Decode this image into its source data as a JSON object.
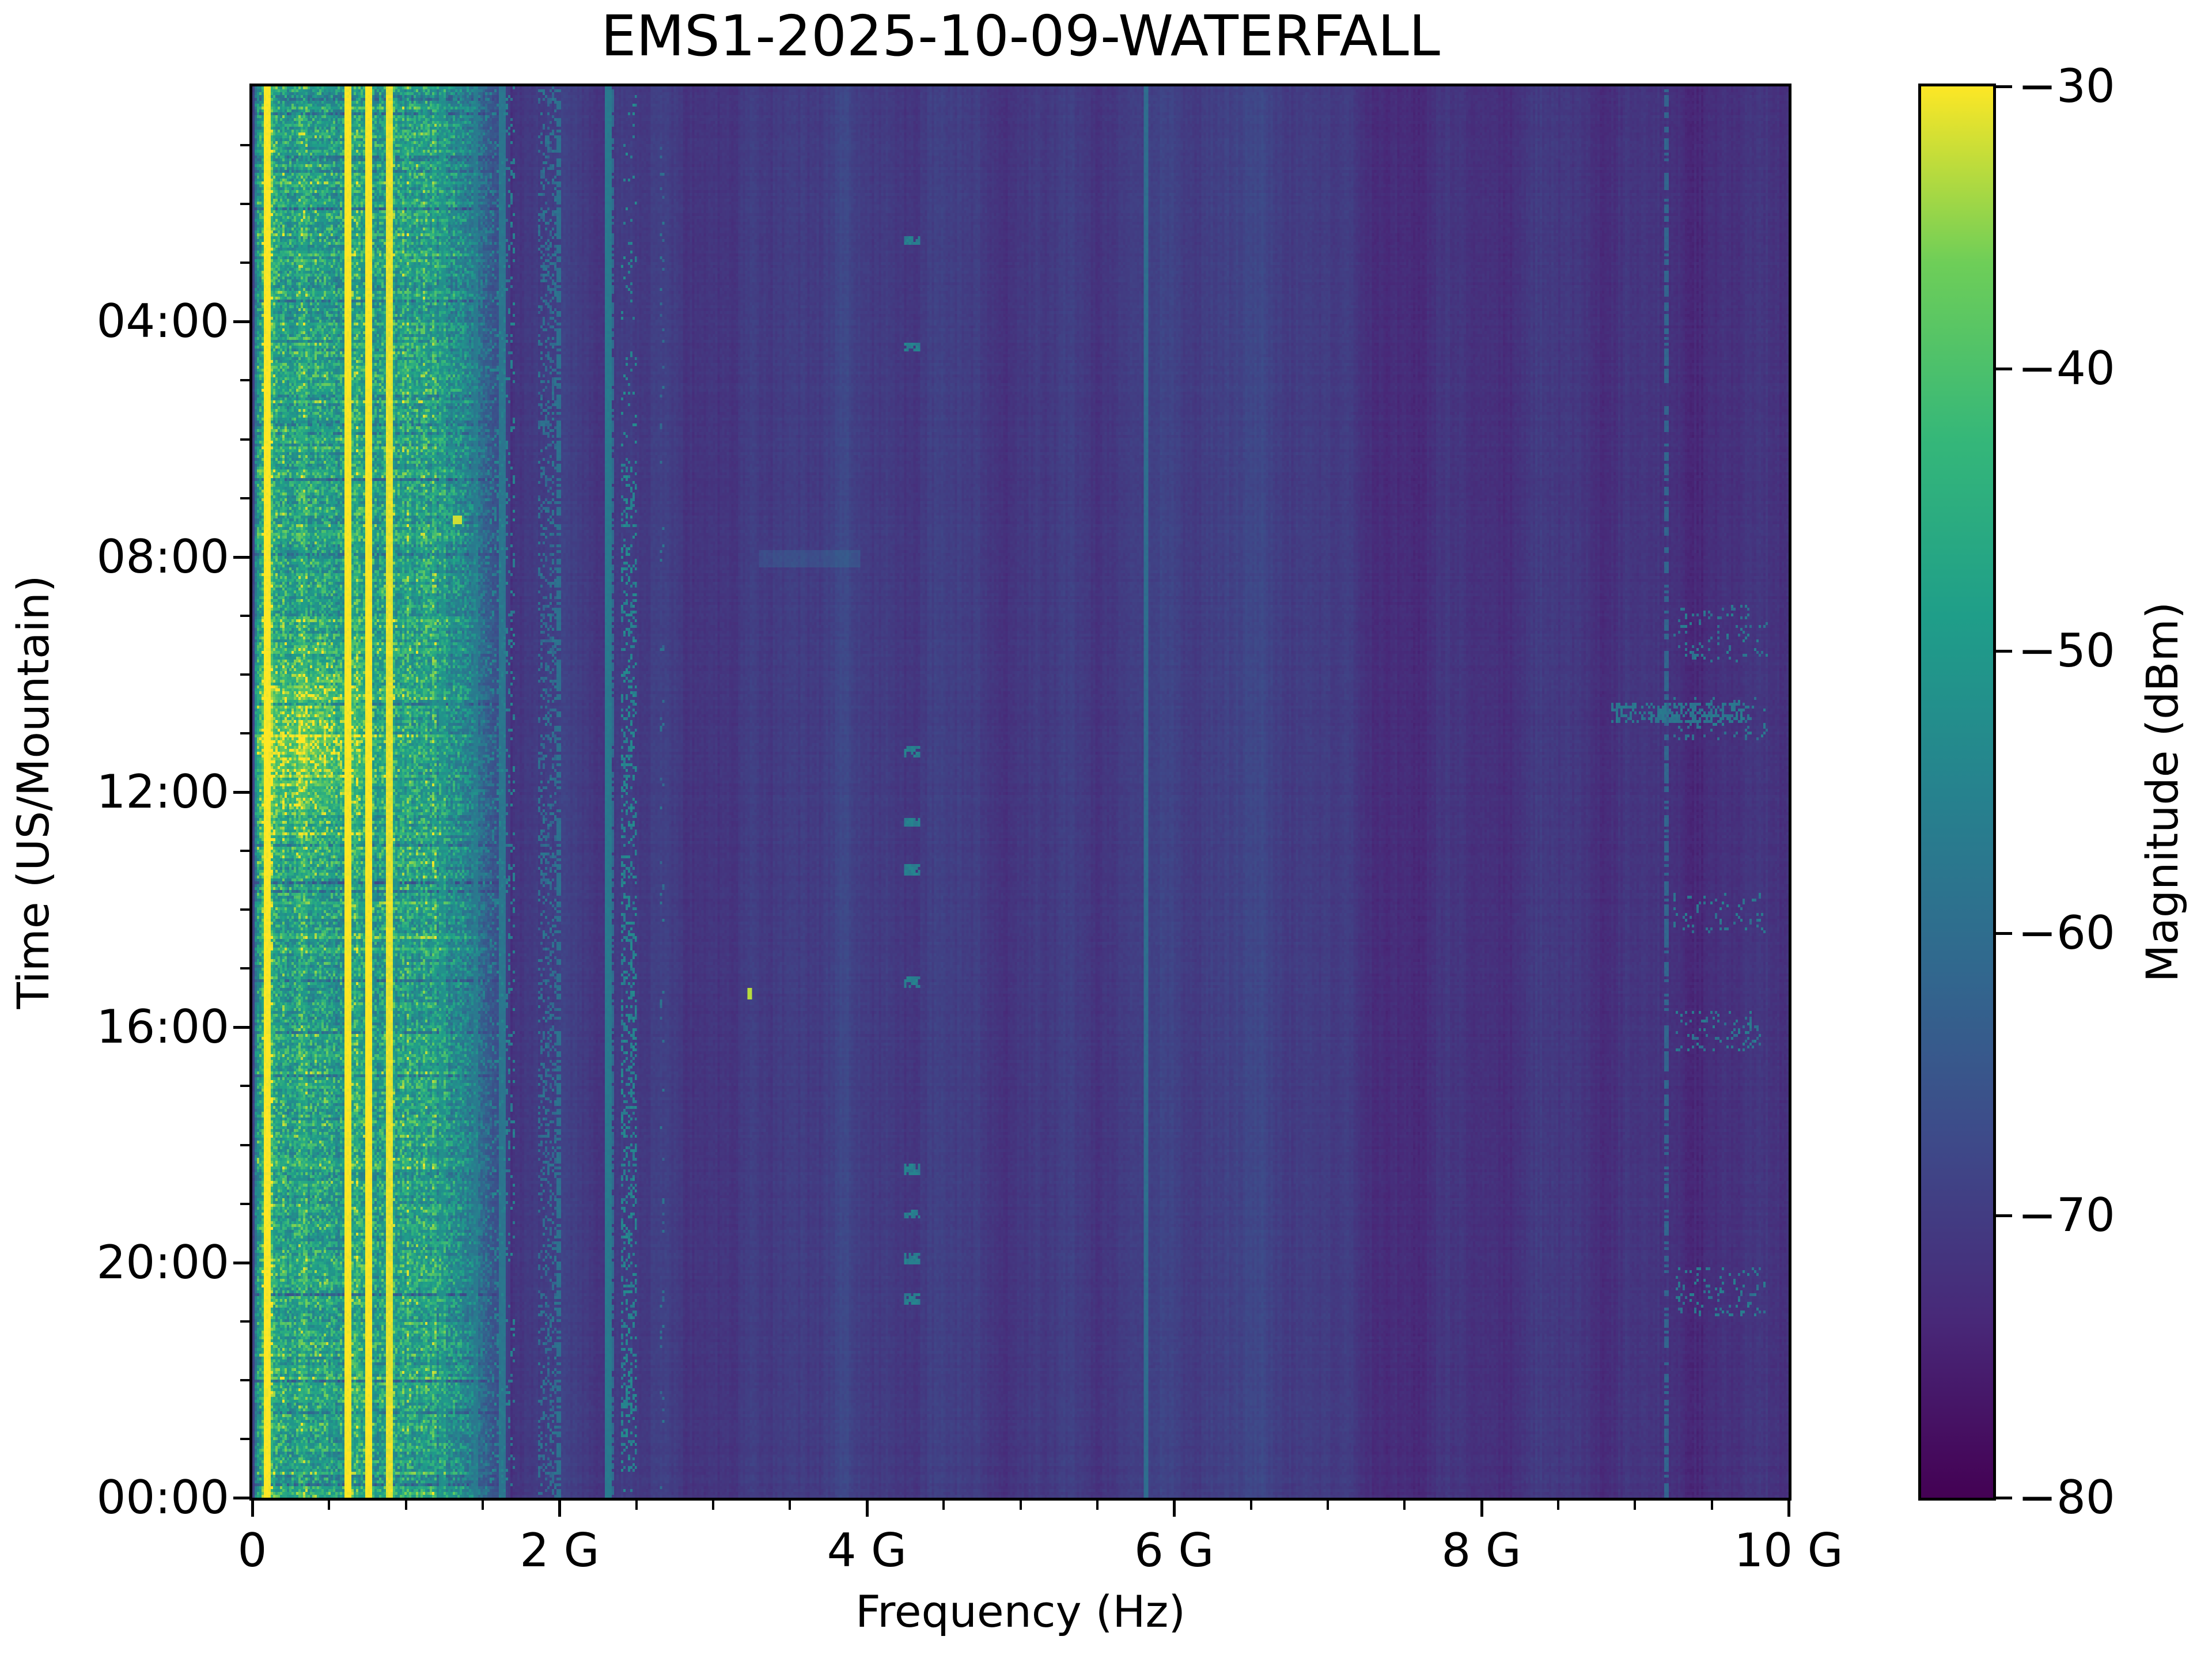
{
  "chart_data": {
    "type": "heatmap",
    "title": "EMS1-2025-10-09-WATERFALL",
    "xlabel": "Frequency (Hz)",
    "ylabel": "Time (US/Mountain)",
    "colorbar_label": "Magnitude (dBm)",
    "x_range_ghz": [
      0,
      10
    ],
    "y_range_hours": [
      0,
      24
    ],
    "value_range_dbm": [
      -80,
      -30
    ],
    "noise_floor_dbm": -70.5,
    "grid": "off",
    "colormap": {
      "name": "viridis",
      "stops": [
        [
          0.0,
          "#440154"
        ],
        [
          0.125,
          "#482878"
        ],
        [
          0.25,
          "#3e4989"
        ],
        [
          0.375,
          "#31688e"
        ],
        [
          0.5,
          "#26828e"
        ],
        [
          0.625,
          "#1f9e89"
        ],
        [
          0.75,
          "#35b779"
        ],
        [
          0.875,
          "#6ece58"
        ],
        [
          1.0,
          "#fde725"
        ]
      ]
    },
    "x_ticks": [
      {
        "ghz": 0,
        "label": "0"
      },
      {
        "ghz": 2,
        "label": "2 G"
      },
      {
        "ghz": 4,
        "label": "4 G"
      },
      {
        "ghz": 6,
        "label": "6 G"
      },
      {
        "ghz": 8,
        "label": "8 G"
      },
      {
        "ghz": 10,
        "label": "10 G"
      }
    ],
    "x_minor_ticks_ghz": [
      0.5,
      1,
      1.5,
      2.5,
      3,
      3.5,
      4.5,
      5,
      5.5,
      6.5,
      7,
      7.5,
      8.5,
      9,
      9.5
    ],
    "y_ticks": [
      {
        "hour": 4,
        "label": "04:00"
      },
      {
        "hour": 8,
        "label": "08:00"
      },
      {
        "hour": 12,
        "label": "12:00"
      },
      {
        "hour": 16,
        "label": "16:00"
      },
      {
        "hour": 20,
        "label": "20:00"
      },
      {
        "hour": 24,
        "label": "00:00"
      }
    ],
    "y_minor_ticks_hours": [
      1,
      2,
      3,
      5,
      6,
      7,
      9,
      10,
      11,
      13,
      14,
      15,
      17,
      18,
      19,
      21,
      22,
      23
    ],
    "colorbar_ticks": [
      {
        "dbm": -30,
        "label": "−30"
      },
      {
        "dbm": -40,
        "label": "−40"
      },
      {
        "dbm": -50,
        "label": "−50"
      },
      {
        "dbm": -60,
        "label": "−60"
      },
      {
        "dbm": -70,
        "label": "−70"
      },
      {
        "dbm": -80,
        "label": "−80"
      }
    ],
    "signals": [
      {
        "kind": "band",
        "name": "broadband-low-band",
        "f_ghz": [
          0.01,
          1.68
        ],
        "base_dbm": -53,
        "peak_texture_db": 17,
        "row_variation_db": 7,
        "sub_peaks": [
          {
            "f": 0.09,
            "db": 5,
            "w": 0.04
          },
          {
            "f": 0.14,
            "db": 4,
            "w": 0.05
          },
          {
            "f": 0.3,
            "db": 3,
            "w": 0.09
          },
          {
            "f": 0.46,
            "db": 2.5,
            "w": 0.07
          },
          {
            "f": 0.7,
            "db": 3.5,
            "w": 0.09
          },
          {
            "f": 0.88,
            "db": 2.5,
            "w": 0.05
          },
          {
            "f": 1.0,
            "db": 2,
            "w": 0.07
          },
          {
            "f": 1.12,
            "db": 1.5,
            "w": 0.05
          }
        ]
      },
      {
        "kind": "blob",
        "name": "midday-wideband-burst",
        "f_ghz": [
          0.02,
          0.95
        ],
        "t_h": [
          9.5,
          13.2
        ],
        "center_f_ghz": 0.33,
        "center_t_h": 11.2,
        "peak_boost_db": 12
      },
      {
        "kind": "carrier",
        "name": "cw-90M",
        "f_ghz": 0.09,
        "w_ghz": 0.03,
        "level_dbm": -30
      },
      {
        "kind": "carrier",
        "name": "cw-620M",
        "f_ghz": 0.62,
        "w_ghz": 0.03,
        "level_dbm": -30
      },
      {
        "kind": "carrier",
        "name": "cw-745M",
        "f_ghz": 0.745,
        "w_ghz": 0.03,
        "level_dbm": -30
      },
      {
        "kind": "carrier",
        "name": "cw-880M",
        "f_ghz": 0.88,
        "w_ghz": 0.028,
        "level_dbm": -31
      },
      {
        "kind": "carrier",
        "name": "carrier-1.23G",
        "f_ghz": 1.23,
        "w_ghz": 0.02,
        "level_dbm": -52
      },
      {
        "kind": "carrier",
        "name": "carrier-1.45G",
        "f_ghz": 1.45,
        "w_ghz": 0.02,
        "level_dbm": -57
      },
      {
        "kind": "carrier",
        "name": "carrier-1.62G",
        "f_ghz": 1.62,
        "w_ghz": 0.02,
        "level_dbm": -58
      },
      {
        "kind": "carrier",
        "name": "carrier-1.99G",
        "f_ghz": 1.99,
        "w_ghz": 0.02,
        "level_dbm": -59,
        "duty": 0.6
      },
      {
        "kind": "carrier",
        "name": "carrier-2.31G",
        "f_ghz": 2.31,
        "w_ghz": 0.02,
        "level_dbm": -57
      },
      {
        "kind": "carrier",
        "name": "carrier-2.335G",
        "f_ghz": 2.335,
        "w_ghz": 0.018,
        "level_dbm": -60,
        "duty": 0.7
      },
      {
        "kind": "carrier",
        "name": "carrier-5.805G",
        "f_ghz": 5.805,
        "w_ghz": 0.02,
        "level_dbm": -60
      },
      {
        "kind": "carrier",
        "name": "carrier-9.2G",
        "f_ghz": 9.2,
        "w_ghz": 0.018,
        "level_dbm": -62,
        "duty": 0.65
      },
      {
        "kind": "speckle",
        "name": "intermittent-1.1-1.7G",
        "f_ghz": [
          1.05,
          1.7
        ],
        "level_dbm": -56,
        "duty": 0.16
      },
      {
        "kind": "speckle",
        "name": "pcs-1.9G",
        "f_ghz": [
          1.86,
          1.97
        ],
        "level_dbm": -60,
        "duty": 0.28
      },
      {
        "kind": "speckle",
        "name": "wifi-2.4G",
        "f_ghz": [
          2.4,
          2.49
        ],
        "level_dbm": -55,
        "duty": 0.3,
        "active_t_h": [
          6.3,
          23.6
        ],
        "off_duty_scale": 0.25
      },
      {
        "kind": "speckle",
        "name": "dashes-2.66G",
        "f_ghz": [
          2.655,
          2.675
        ],
        "level_dbm": -60,
        "duty": 0.07
      },
      {
        "kind": "speckle",
        "name": "xband-9.3-9.8G",
        "f_ghz": [
          9.25,
          9.85
        ],
        "level_dbm": -58,
        "duty": 0.12,
        "windows_h": [
          [
            8.8,
            9.8
          ],
          [
            10.4,
            11.1
          ],
          [
            13.7,
            14.4
          ],
          [
            15.7,
            16.4
          ],
          [
            20.1,
            20.9
          ]
        ]
      },
      {
        "kind": "bursts",
        "name": "dashes-4.3G",
        "f_ghz": [
          4.25,
          4.34
        ],
        "level_dbm": -56,
        "times_h": [
          2.6,
          4.4,
          11.3,
          12.5,
          13.3,
          15.2,
          18.4,
          19.15,
          19.9,
          20.6
        ],
        "burst_len_h": 0.12,
        "duty": 0.8
      },
      {
        "kind": "rowburst",
        "name": "row-sweep-9G",
        "f_ghz": [
          8.85,
          9.75
        ],
        "t_h": [
          10.5,
          10.78
        ],
        "level_dbm": -58,
        "duty": 0.5
      },
      {
        "kind": "dot",
        "name": "spike-1.32G",
        "f_ghz": 1.32,
        "t_h": 7.35,
        "w_ghz": 0.045,
        "len_h": 0.1,
        "level_dbm": -32
      },
      {
        "kind": "dot",
        "name": "spike-3.23G",
        "f_ghz": 3.23,
        "t_h": 15.4,
        "w_ghz": 0.028,
        "len_h": 0.12,
        "level_dbm": -33
      },
      {
        "kind": "boost",
        "name": "lighter-column-3.4-3.95G",
        "f_ghz": [
          3.35,
          3.95
        ],
        "boost_db": 1.6
      },
      {
        "kind": "boost",
        "name": "lighter-columns-5.2-7.2G",
        "f_ghz": [
          5.2,
          7.2
        ],
        "boost_db": 1.0
      },
      {
        "kind": "boost",
        "name": "darker-column-2.5-2.63G",
        "f_ghz": [
          2.5,
          2.63
        ],
        "boost_db": -1.8
      },
      {
        "kind": "boost",
        "name": "hf-rolloff-7-10G",
        "f_ghz": [
          7.0,
          10.0
        ],
        "boost_db": -1.2
      },
      {
        "kind": "rowboost",
        "name": "lighter-row-0800",
        "f_ghz": [
          3.3,
          3.95
        ],
        "t_h": [
          7.9,
          8.15
        ],
        "boost_db": 3.5
      }
    ]
  }
}
